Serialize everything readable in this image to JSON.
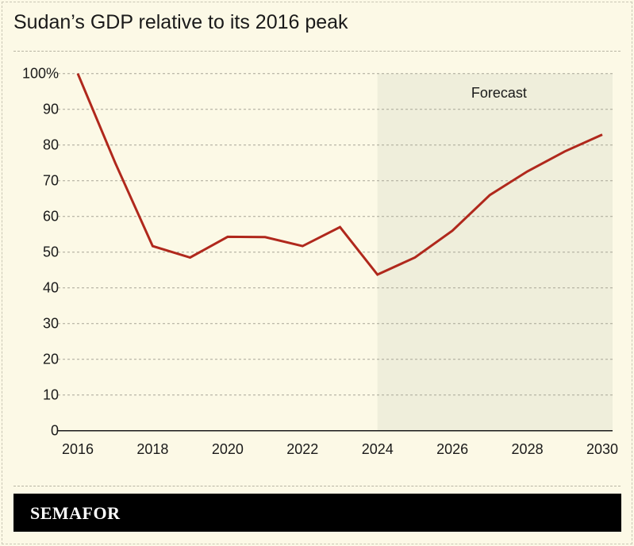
{
  "title": "Sudan’s GDP relative to its 2016 peak",
  "brand": "SEMAFOR",
  "colors": {
    "line": "#b0281c",
    "background": "#fcf9e6",
    "forecast_shade": "#efeedb"
  },
  "chart_data": {
    "type": "line",
    "title": "Sudan’s GDP relative to its 2016 peak",
    "xlabel": "",
    "ylabel": "",
    "x": [
      2016,
      2017,
      2018,
      2019,
      2020,
      2021,
      2022,
      2023,
      2024,
      2025,
      2026,
      2027,
      2028,
      2029,
      2030
    ],
    "values": [
      100,
      75,
      51.7,
      48.5,
      54.3,
      54.2,
      51.7,
      57.0,
      43.7,
      48.5,
      56.0,
      66.0,
      72.6,
      78.2,
      82.9
    ],
    "xlim": [
      2016,
      2030
    ],
    "ylim": [
      0,
      100
    ],
    "x_ticks": [
      "2016",
      "2018",
      "2020",
      "2022",
      "2024",
      "2026",
      "2028",
      "2030"
    ],
    "y_ticks": [
      "0",
      "10",
      "20",
      "30",
      "40",
      "50",
      "60",
      "70",
      "80",
      "90",
      "100%"
    ],
    "grid": "horizontal dashed",
    "forecast_region": {
      "from": 2024,
      "to": 2030,
      "label": "Forecast"
    }
  }
}
